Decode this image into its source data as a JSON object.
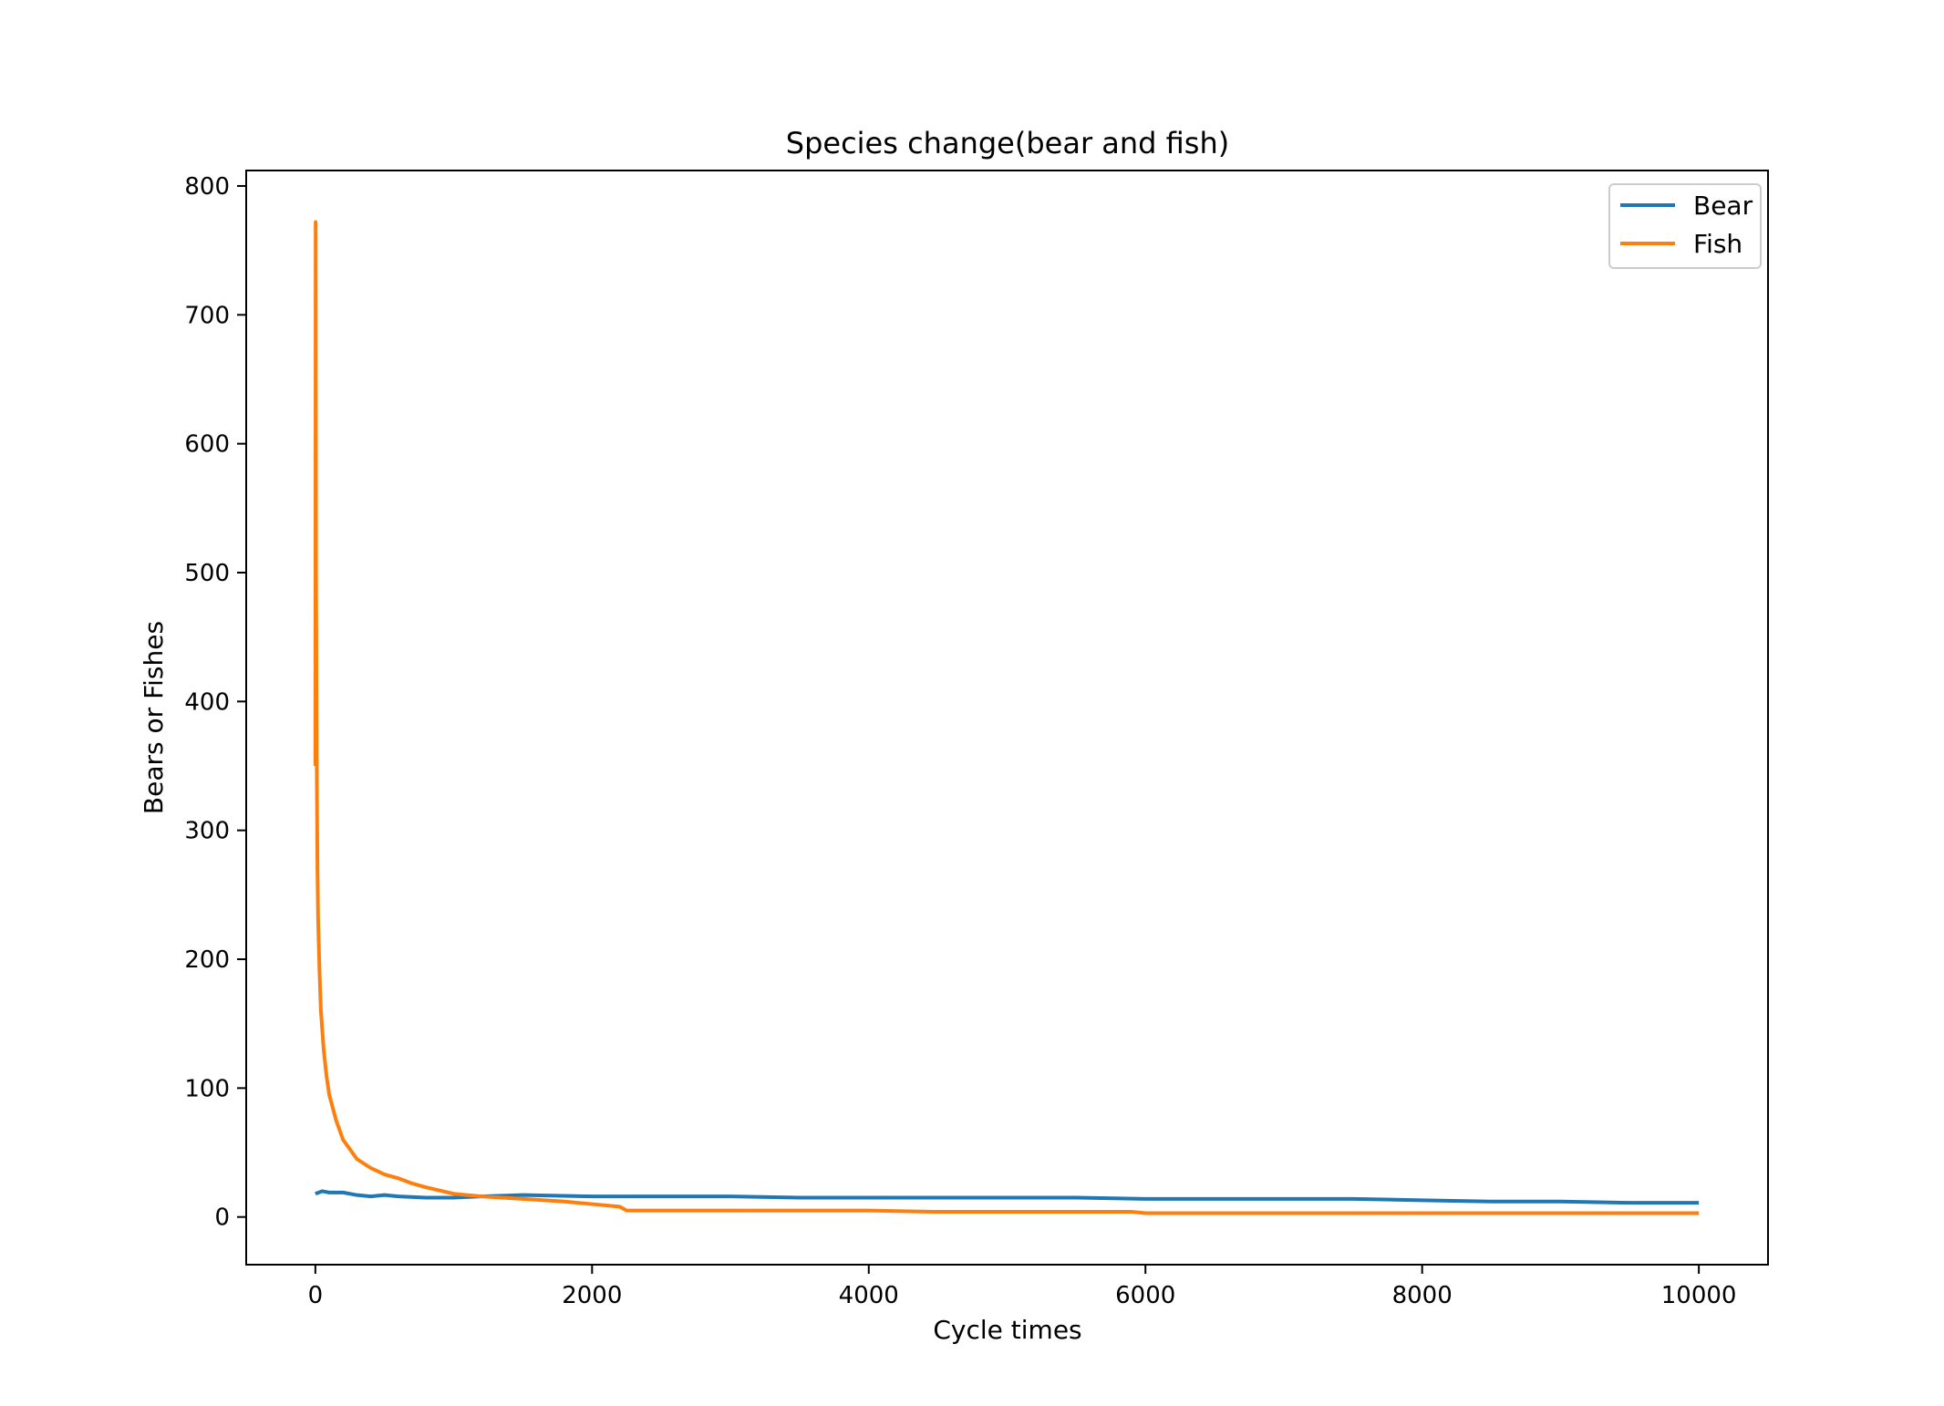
{
  "chart_data": {
    "type": "line",
    "title": "Species change(bear and fish)",
    "xlabel": "Cycle times",
    "ylabel": "Bears or Fishes",
    "xlim": [
      -500,
      10500
    ],
    "ylim": [
      -37,
      812
    ],
    "xticks": [
      0,
      2000,
      4000,
      6000,
      8000,
      10000
    ],
    "xtick_labels": [
      "0",
      "2000",
      "4000",
      "6000",
      "8000",
      "10000"
    ],
    "yticks": [
      0,
      100,
      200,
      300,
      400,
      500,
      600,
      700,
      800
    ],
    "ytick_labels": [
      "0",
      "100",
      "200",
      "300",
      "400",
      "500",
      "600",
      "700",
      "800"
    ],
    "grid": false,
    "legend_position": "top-right",
    "series": [
      {
        "name": "Bear",
        "color": "#1f77b4",
        "x": [
          0,
          50,
          100,
          200,
          300,
          400,
          500,
          600,
          800,
          1000,
          1200,
          1500,
          2000,
          2500,
          3000,
          3500,
          4000,
          4500,
          5000,
          5500,
          6000,
          6500,
          7000,
          7500,
          8000,
          8500,
          9000,
          9500,
          10000
        ],
        "y": [
          18,
          20,
          19,
          19,
          17,
          16,
          17,
          16,
          15,
          15,
          16,
          17,
          16,
          16,
          16,
          15,
          15,
          15,
          15,
          15,
          14,
          14,
          14,
          14,
          13,
          12,
          12,
          11,
          11
        ]
      },
      {
        "name": "Fish",
        "color": "#ff7f0e",
        "x": [
          0,
          2,
          5,
          10,
          15,
          20,
          30,
          40,
          60,
          80,
          100,
          150,
          200,
          300,
          400,
          500,
          600,
          700,
          800,
          1000,
          1200,
          1500,
          1800,
          2000,
          2200,
          2250,
          2500,
          3000,
          4000,
          4500,
          5000,
          5900,
          6000,
          7000,
          7600,
          8000,
          9000,
          10000
        ],
        "y": [
          350,
          772,
          500,
          350,
          270,
          230,
          190,
          160,
          130,
          110,
          95,
          75,
          60,
          45,
          38,
          33,
          30,
          26,
          23,
          18,
          16,
          14,
          12,
          10,
          8,
          5,
          5,
          5,
          5,
          4,
          4,
          4,
          3,
          3,
          3,
          3,
          3,
          3
        ]
      }
    ]
  }
}
